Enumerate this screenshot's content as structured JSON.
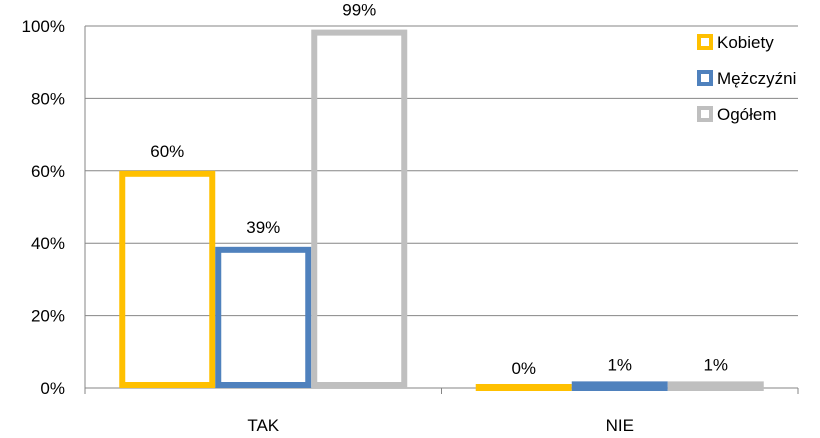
{
  "chart_data": {
    "type": "bar",
    "categories": [
      "TAK",
      "NIE"
    ],
    "series": [
      {
        "name": "Kobiety",
        "values": [
          60,
          0
        ],
        "labels": [
          "60%",
          "0%"
        ],
        "color": "#FFC000"
      },
      {
        "name": "Mężczyźni",
        "values": [
          39,
          1
        ],
        "labels": [
          "39%",
          "1%"
        ],
        "color": "#4F81BD"
      },
      {
        "name": "Ogółem",
        "values": [
          99,
          1
        ],
        "labels": [
          "99%",
          "1%"
        ],
        "color": "#BFBFBF"
      }
    ],
    "ylim": [
      0,
      100
    ],
    "yticks": [
      0,
      20,
      40,
      60,
      80,
      100
    ],
    "ytick_labels": [
      "0%",
      "20%",
      "40%",
      "60%",
      "80%",
      "100%"
    ],
    "grid": true,
    "legend_position": "top-right",
    "bar_style": "outlined"
  }
}
